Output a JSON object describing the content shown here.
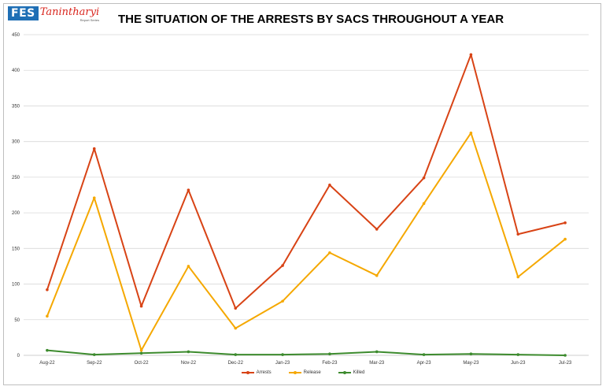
{
  "logo": {
    "box_text": "FES",
    "name": "Tanintharyi",
    "sub": "Report Series"
  },
  "chart_data": {
    "type": "line",
    "title": "THE SITUATION OF THE ARRESTS BY SACS THROUGHOUT A YEAR",
    "categories": [
      "Aug-22",
      "Sep-22",
      "Oct-22",
      "Nov-22",
      "Dec-22",
      "Jan-23",
      "Feb-23",
      "Mar-23",
      "Apr-23",
      "May-23",
      "Jun-23",
      "Jul-23"
    ],
    "ylim": [
      0,
      450
    ],
    "yticks": [
      0,
      50,
      100,
      150,
      200,
      250,
      300,
      350,
      400,
      450
    ],
    "grid": true,
    "legend_position": "bottom",
    "series": [
      {
        "name": "Arrests",
        "color": "#d84315",
        "values": [
          92,
          290,
          69,
          232,
          66,
          126,
          239,
          177,
          249,
          422,
          170,
          186
        ]
      },
      {
        "name": "Release",
        "color": "#f5a800",
        "values": [
          55,
          221,
          7,
          125,
          38,
          76,
          144,
          112,
          213,
          312,
          110,
          163
        ]
      },
      {
        "name": "Killed",
        "color": "#3d8b2e",
        "values": [
          7,
          1,
          3,
          5,
          1,
          1,
          2,
          5,
          1,
          2,
          1,
          0
        ]
      }
    ]
  }
}
